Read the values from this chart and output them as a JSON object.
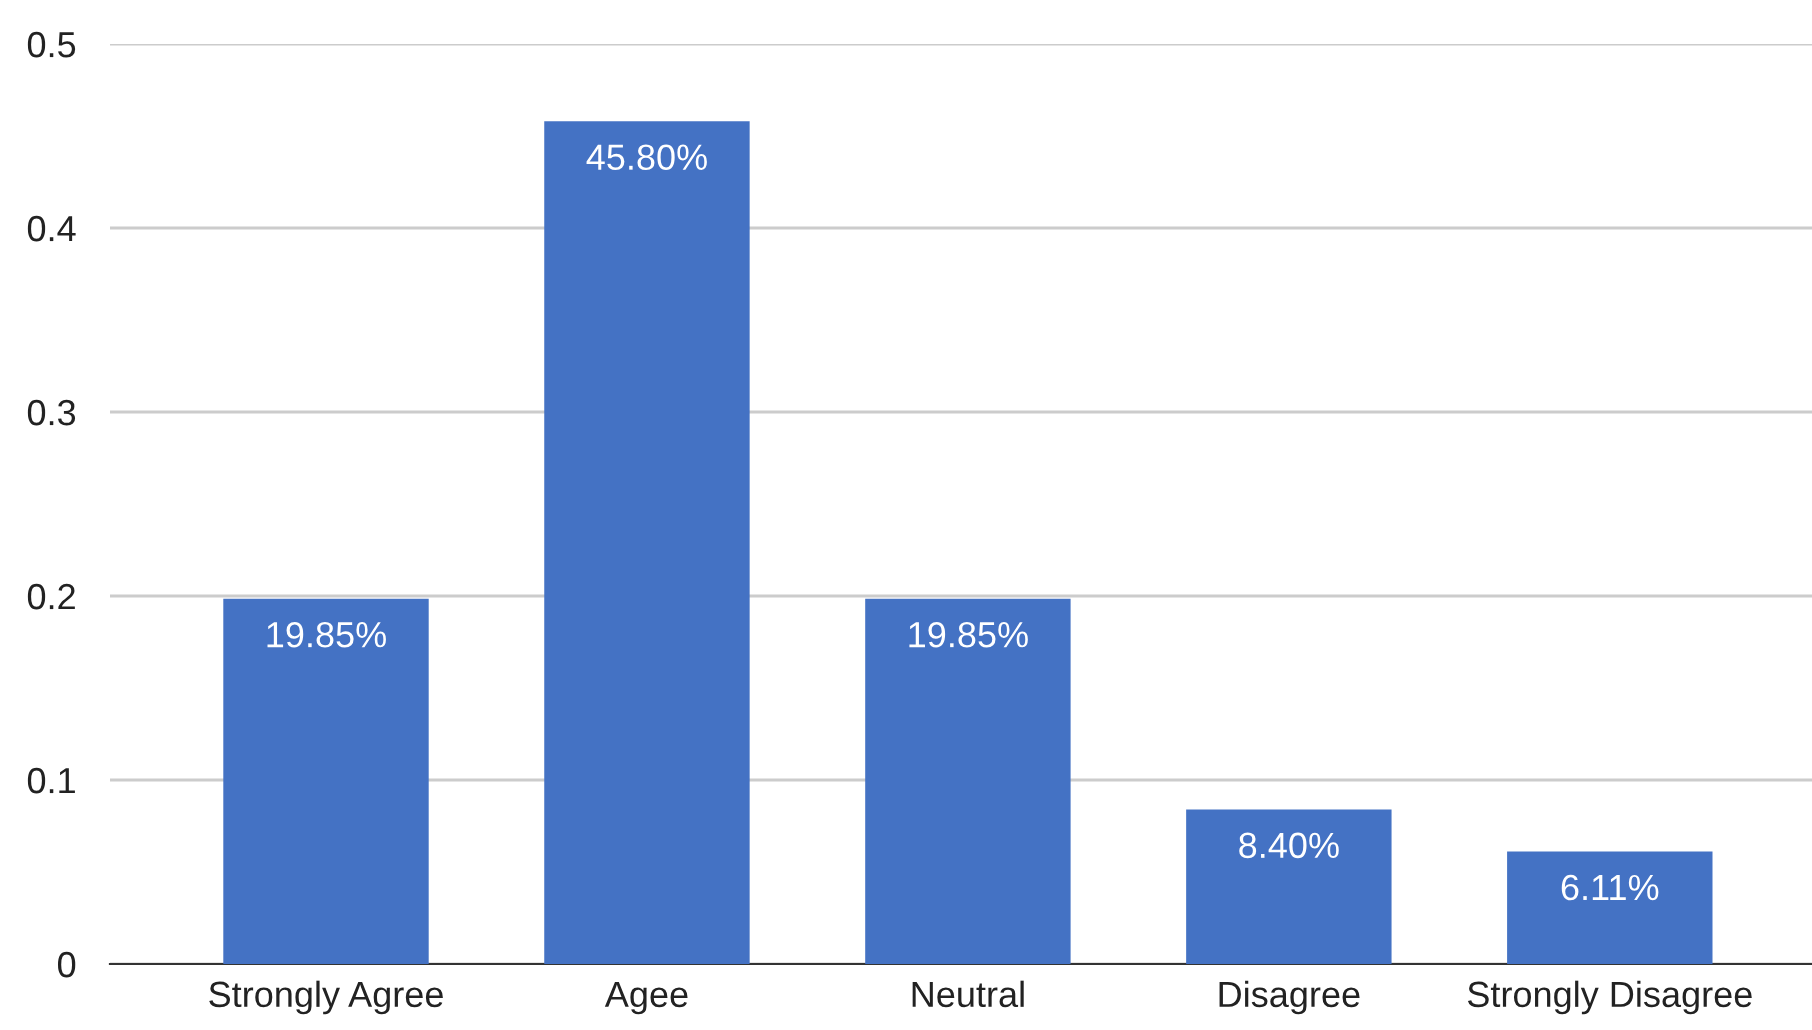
{
  "chart_data": {
    "type": "bar",
    "categories": [
      "Strongly Agree",
      "Agee",
      "Neutral",
      "Disagree",
      "Strongly Disagree"
    ],
    "values": [
      0.1985,
      0.458,
      0.1985,
      0.084,
      0.0611
    ],
    "value_labels": [
      "19.85%",
      "45.80%",
      "19.85%",
      "8.40%",
      "6.11%"
    ],
    "color": "#4472c4",
    "ylim": [
      0,
      0.5
    ],
    "yticks": [
      {
        "value": 0,
        "label": "0"
      },
      0.1,
      0.2,
      0.3,
      0.4,
      0.5
    ],
    "grid": "y",
    "legend": false
  }
}
